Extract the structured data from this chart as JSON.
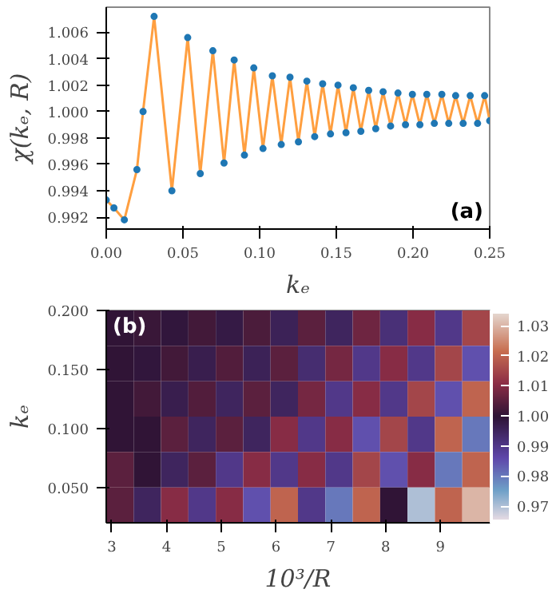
{
  "chart_data": [
    {
      "type": "line",
      "xlabel": "kₑ",
      "ylabel": "χ(kₑ, R)",
      "xlim": [
        0,
        0.25
      ],
      "ylim": [
        0.9911,
        1.0079
      ],
      "xticks": [
        {
          "value": 0,
          "label": "0.00"
        },
        0.05,
        {
          "value": 0.1,
          "label": "0.10"
        },
        0.15,
        {
          "value": 0.2,
          "label": "0.20"
        },
        0.25
      ],
      "yticks": [
        0.992,
        0.994,
        0.996,
        0.998,
        {
          "value": 1.0,
          "label": "1.000"
        },
        1.002,
        1.004,
        1.006
      ],
      "x": [
        0,
        0.005,
        0.0118,
        0.02,
        0.024,
        0.0312,
        0.0428,
        0.0531,
        0.0613,
        0.0695,
        0.0768,
        0.0834,
        0.0901,
        0.0962,
        0.1022,
        0.1083,
        0.1141,
        0.1198,
        0.1253,
        0.1308,
        0.1359,
        0.1411,
        0.1462,
        0.1511,
        0.1563,
        0.1611,
        0.166,
        0.1711,
        0.1757,
        0.1805,
        0.1854,
        0.1902,
        0.1951,
        0.1996,
        0.2045,
        0.209,
        0.2139,
        0.2188,
        0.2233,
        0.2278,
        0.2327,
        0.2373,
        0.2421,
        0.2467,
        0.25
      ],
      "series": [
        {
          "type": "line",
          "color": "#ff9f40",
          "marker": "none",
          "values": [
            0.9933,
            0.9927,
            0.9918,
            0.9956,
            1.0,
            1.0072,
            0.994,
            1.0056,
            0.9953,
            1.0046,
            0.9961,
            1.0039,
            0.9967,
            1.0033,
            0.9972,
            1.0027,
            0.9975,
            1.0026,
            0.9977,
            1.0023,
            0.9981,
            1.0021,
            0.9983,
            1.002,
            0.9984,
            1.0018,
            0.9985,
            1.0016,
            0.9987,
            1.0015,
            0.9989,
            1.0014,
            0.999,
            1.0013,
            0.999,
            1.0013,
            0.9991,
            1.0013,
            0.9991,
            1.0012,
            0.9991,
            1.0012,
            0.9991,
            1.0012,
            0.9993
          ]
        },
        {
          "type": "scatter",
          "color": "#1f77b4",
          "marker": "circle",
          "values": [
            0.9933,
            0.9927,
            0.9918,
            0.9956,
            1.0,
            1.0072,
            0.994,
            1.0056,
            0.9953,
            1.0046,
            0.9961,
            1.0039,
            0.9967,
            1.0033,
            0.9972,
            1.0027,
            0.9975,
            1.0026,
            0.9977,
            1.0023,
            0.9981,
            1.0021,
            0.9983,
            1.002,
            0.9984,
            1.0018,
            0.9985,
            1.0016,
            0.9987,
            1.0015,
            0.9989,
            1.0014,
            0.999,
            1.0013,
            0.999,
            1.0013,
            0.9991,
            1.0013,
            0.9991,
            1.0012,
            0.9991,
            1.0012,
            0.9991,
            1.0012,
            0.9993
          ]
        }
      ],
      "grid": false,
      "annotations": [
        "(a)"
      ]
    },
    {
      "type": "heatmap",
      "xlabel": "10³/R",
      "ylabel": "kₑ",
      "xlim": [
        2.9,
        9.9
      ],
      "ylim": [
        0.02,
        0.2
      ],
      "xticks": [
        3,
        4,
        5,
        6,
        7,
        8,
        9
      ],
      "yticks": [
        {
          "value": 0.05,
          "label": "0.050"
        },
        {
          "value": 0.1,
          "label": "0.100"
        },
        {
          "value": 0.15,
          "label": "0.150"
        },
        {
          "value": 0.2,
          "label": "0.200"
        }
      ],
      "x": [
        3.15,
        3.65,
        4.15,
        4.65,
        5.15,
        5.65,
        6.15,
        6.65,
        7.15,
        7.65,
        8.15,
        8.65,
        9.15,
        9.65
      ],
      "y": [
        0.185,
        0.155,
        0.125,
        0.095,
        0.065,
        0.035
      ],
      "cells": [
        [
          1.0,
          1.001,
          0.999,
          1.002,
          0.998,
          1.003,
          0.996,
          1.005,
          0.995,
          1.007,
          0.992,
          1.01,
          0.99,
          1.015
        ],
        [
          1.0,
          0.999,
          1.002,
          0.997,
          1.004,
          0.996,
          1.005,
          0.993,
          1.008,
          0.99,
          1.01,
          0.99,
          1.015,
          0.985
        ],
        [
          1.0,
          1.002,
          0.997,
          1.004,
          0.995,
          1.005,
          0.995,
          1.008,
          0.99,
          1.01,
          0.99,
          1.015,
          0.985,
          1.02
        ],
        [
          1.0,
          1.0,
          1.005,
          0.995,
          1.005,
          0.995,
          1.01,
          0.99,
          1.01,
          0.985,
          1.015,
          0.99,
          1.02,
          0.98
        ],
        [
          1.005,
          1.0,
          0.995,
          1.005,
          0.99,
          1.01,
          0.99,
          1.01,
          0.99,
          1.015,
          0.985,
          1.01,
          0.98,
          1.02
        ],
        [
          1.005,
          0.995,
          1.01,
          0.99,
          1.01,
          0.985,
          1.02,
          0.99,
          0.98,
          1.02,
          1.0,
          0.97,
          1.02,
          1.03
        ]
      ],
      "clim": [
        0.9655,
        1.034
      ],
      "cticks": [
        0.97,
        0.98,
        0.99,
        {
          "value": 1.0,
          "label": "1.00"
        },
        1.01,
        1.02,
        1.03
      ],
      "annotations": [
        "(b)"
      ]
    }
  ]
}
